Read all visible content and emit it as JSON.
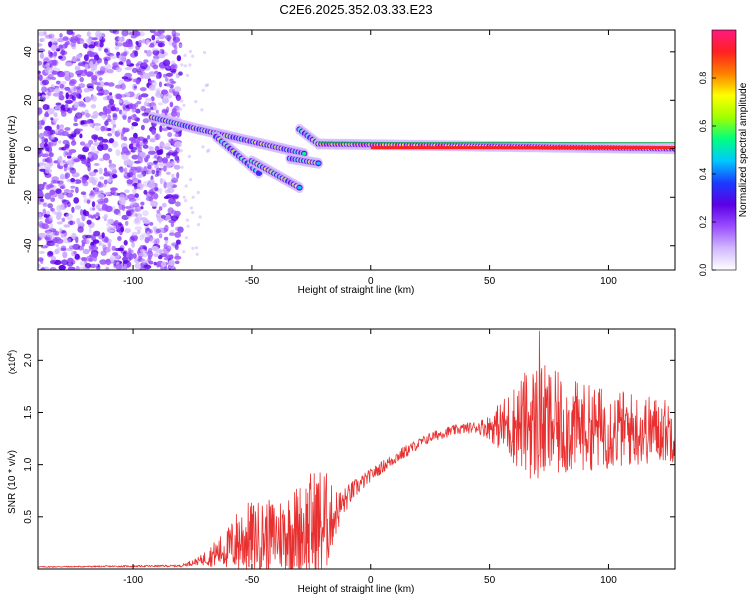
{
  "figure": {
    "title": "C2E6.2025.352.03.33.E23"
  },
  "chart_data": [
    {
      "type": "heatmap",
      "title": "",
      "xlabel": "Height of straight line (km)",
      "ylabel": "Frequency (Hz)",
      "xlim": [
        -140,
        128
      ],
      "ylim": [
        -50,
        49
      ],
      "xticks": [
        -100,
        -50,
        0,
        50,
        100
      ],
      "yticks": [
        -40,
        -20,
        0,
        20,
        40
      ],
      "noise_region_x": [
        -140,
        -80
      ],
      "ridge": {
        "segments": [
          {
            "x": [
              -92,
              -72
            ],
            "y": [
              13,
              8
            ]
          },
          {
            "x": [
              -72,
              -28
            ],
            "y": [
              8,
              -2
            ]
          },
          {
            "x": [
              -65,
              -47
            ],
            "y": [
              5,
              -10
            ]
          },
          {
            "x": [
              -50,
              -30
            ],
            "y": [
              -5,
              -16
            ]
          },
          {
            "x": [
              -34,
              -22
            ],
            "y": [
              -4,
              -6
            ]
          },
          {
            "x": [
              -30,
              -22
            ],
            "y": [
              8,
              2
            ]
          },
          {
            "x": [
              -22,
              128
            ],
            "y": [
              2,
              0
            ]
          }
        ]
      },
      "colorbar": {
        "label": "Normalized spectral amplitude",
        "range": [
          0,
          1
        ],
        "ticks": [
          "0.0",
          "0.2",
          "0.4",
          "0.6",
          "0.8"
        ],
        "colors": [
          "#ffffff",
          "#d2b8ff",
          "#9a4dff",
          "#5c00e6",
          "#1a3cff",
          "#00c8ff",
          "#00ff80",
          "#a0ff00",
          "#ffff00",
          "#ff8000",
          "#ff2020",
          "#ff1a80"
        ]
      }
    },
    {
      "type": "line",
      "title": "",
      "xlabel": "Height of straight line (km)",
      "ylabel": "SNR (10 * v/v)",
      "y_multiplier": "(x10",
      "y_multiplier_exp": "4",
      "y_multiplier_close": ")",
      "xlim": [
        -140,
        128
      ],
      "ylim": [
        0,
        2.3
      ],
      "xticks": [
        -100,
        -50,
        0,
        50,
        100
      ],
      "yticks": [
        "0.5",
        "1.0",
        "1.5",
        "2.0"
      ],
      "series_color": "#e83030",
      "envelope": {
        "x": [
          -140,
          -80,
          -72,
          -60,
          -55,
          -50,
          -40,
          -30,
          -25,
          -20,
          -16,
          -12,
          -8,
          -4,
          0,
          5,
          10,
          15,
          20,
          25,
          30,
          35,
          40,
          45,
          50,
          55,
          60,
          65,
          70,
          75,
          80,
          85,
          90,
          95,
          100,
          105,
          110,
          115,
          120,
          128
        ],
        "mean": [
          0.02,
          0.03,
          0.08,
          0.2,
          0.28,
          0.3,
          0.32,
          0.38,
          0.4,
          0.42,
          0.5,
          0.62,
          0.74,
          0.82,
          0.9,
          0.98,
          1.06,
          1.13,
          1.2,
          1.26,
          1.3,
          1.33,
          1.35,
          1.36,
          1.36,
          1.37,
          1.38,
          1.4,
          1.4,
          1.38,
          1.37,
          1.36,
          1.36,
          1.35,
          1.35,
          1.34,
          1.34,
          1.33,
          1.34,
          1.32
        ],
        "spread": [
          0.005,
          0.01,
          0.04,
          0.2,
          0.35,
          0.35,
          0.35,
          0.45,
          0.55,
          0.6,
          0.28,
          0.14,
          0.1,
          0.08,
          0.06,
          0.06,
          0.06,
          0.06,
          0.05,
          0.05,
          0.05,
          0.05,
          0.05,
          0.06,
          0.12,
          0.25,
          0.38,
          0.5,
          0.6,
          0.55,
          0.5,
          0.45,
          0.42,
          0.4,
          0.4,
          0.38,
          0.36,
          0.34,
          0.32,
          0.3
        ]
      },
      "peak": {
        "x": 71,
        "y": 2.28
      }
    }
  ]
}
